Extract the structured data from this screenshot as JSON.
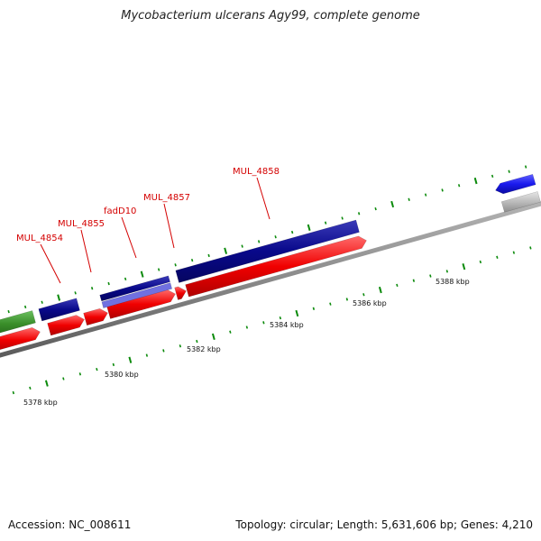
{
  "title": "Mycobacterium ulcerans Agy99, complete genome",
  "footer": {
    "accession": "Accession: NC_008611",
    "summary": "Topology: circular; Length: 5,631,606 bp; Genes: 4,210"
  },
  "colors": {
    "backbone": "#8a8a8a",
    "tick": "#0b8a0b",
    "cds": "#f00000",
    "gene": "#08088a",
    "gene_light": "#7070e0",
    "rna": "#3a8e2a",
    "other_blue": "#1a1aee",
    "pseudo": "#bbbbbb",
    "label": "#d40000"
  },
  "axis": {
    "unit": "kbp",
    "tick_labels": [
      "5378 kbp",
      "5380 kbp",
      "5382 kbp",
      "5384 kbp",
      "5386 kbp",
      "5388 kbp"
    ]
  },
  "gene_labels": [
    "MUL_4854",
    "MUL_4855",
    "fadD10",
    "MUL_4857",
    "MUL_4858"
  ]
}
